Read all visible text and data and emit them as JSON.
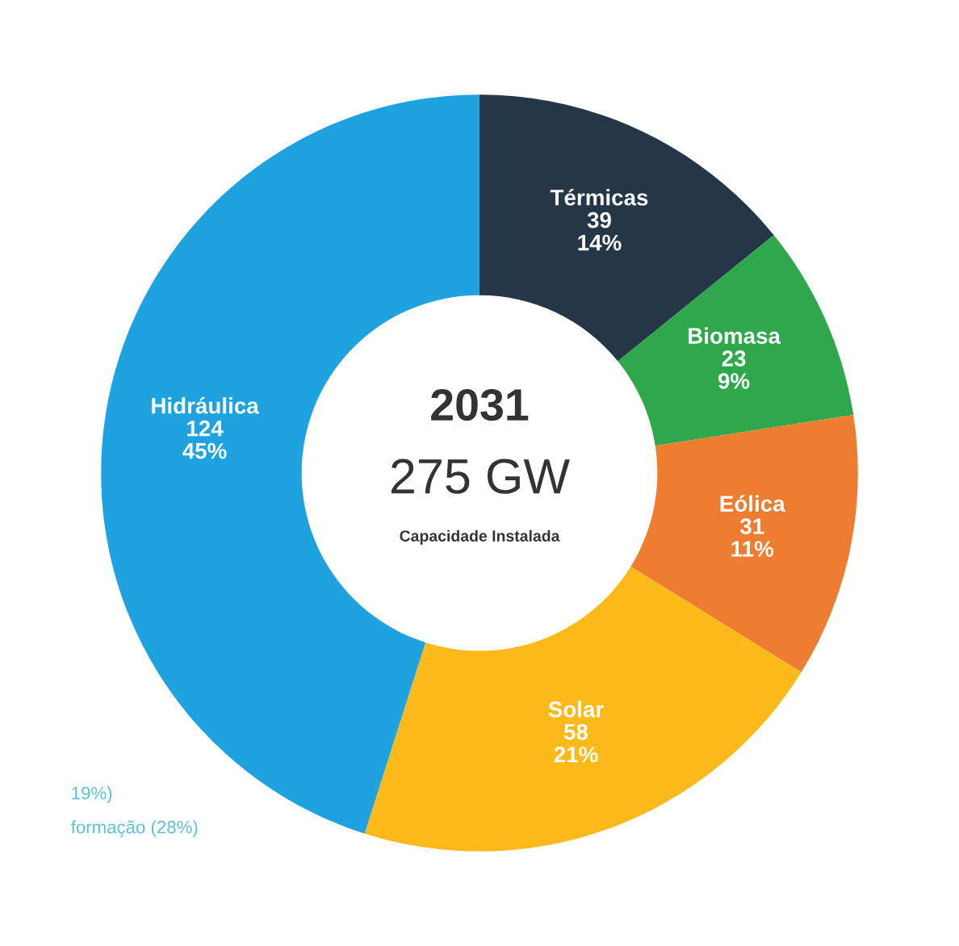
{
  "chart_data": {
    "type": "donut",
    "title": "2031",
    "categories": [
      "Térmicas",
      "Biomasa",
      "Eólica",
      "Solar",
      "Hidráulica"
    ],
    "values": [
      39,
      23,
      31,
      58,
      124
    ],
    "value_labels": [
      "39\n14%",
      "23\n9%",
      "31\n11%",
      "58\n21%",
      "124\n45%"
    ],
    "colors": [
      "#253746",
      "#2ea84a",
      "#ee7d31",
      "#fbb91a",
      "#1fa3e0"
    ],
    "annotations": [
      "275 GW",
      "Capacidade Instalada",
      "19%)",
      "formação (28%)"
    ],
    "legend": false
  }
}
